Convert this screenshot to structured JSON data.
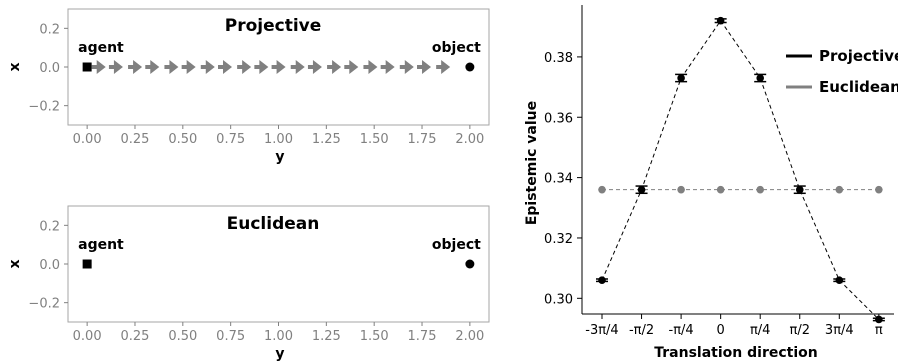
{
  "chart_data": [
    {
      "type": "scatter",
      "title": "Projective",
      "xlabel": "y",
      "ylabel": "x",
      "xlim": [
        -0.1,
        2.1
      ],
      "ylim": [
        -0.3,
        0.3
      ],
      "xticks": [
        "0.00",
        "0.25",
        "0.50",
        "0.75",
        "1.00",
        "1.25",
        "1.50",
        "1.75",
        "2.00"
      ],
      "yticks": [
        "0.2",
        "0.0",
        "−0.2"
      ],
      "agent": {
        "label": "agent",
        "x": 0.0,
        "y": 0.0
      },
      "object": {
        "label": "object",
        "x": 2.0,
        "y": 0.0
      },
      "arrows": [
        0.05,
        0.14,
        0.24,
        0.33,
        0.43,
        0.52,
        0.62,
        0.71,
        0.81,
        0.9,
        0.99,
        1.09,
        1.18,
        1.28,
        1.37,
        1.47,
        1.56,
        1.66,
        1.75,
        1.85
      ],
      "grid": false
    },
    {
      "type": "scatter",
      "title": "Euclidean",
      "xlabel": "y",
      "ylabel": "x",
      "xlim": [
        -0.1,
        2.1
      ],
      "ylim": [
        -0.3,
        0.3
      ],
      "xticks": [
        "0.00",
        "0.25",
        "0.50",
        "0.75",
        "1.00",
        "1.25",
        "1.50",
        "1.75",
        "2.00"
      ],
      "yticks": [
        "0.2",
        "0.0",
        "−0.2"
      ],
      "agent": {
        "label": "agent",
        "x": 0.0,
        "y": 0.0
      },
      "object": {
        "label": "object",
        "x": 2.0,
        "y": 0.0
      },
      "grid": false
    },
    {
      "type": "line",
      "title": "",
      "xlabel": "Translation direction",
      "ylabel": "Epistemic value",
      "categories": [
        "-3π/4",
        "-π/2",
        "-π/4",
        "0",
        "π/4",
        "π/2",
        "3π/4",
        "π"
      ],
      "ylim": [
        0.2948,
        0.3972
      ],
      "yticks": [
        0.3,
        0.32,
        0.34,
        0.36,
        0.38
      ],
      "series": [
        {
          "name": "Projective",
          "color": "#000000",
          "values": [
            0.306,
            0.336,
            0.373,
            0.392,
            0.373,
            0.336,
            0.306,
            0.293
          ],
          "errors": [
            0.0004,
            0.0012,
            0.0012,
            0.0006,
            0.0012,
            0.0012,
            0.0004,
            0.0004
          ]
        },
        {
          "name": "Euclidean",
          "color": "#808080",
          "values": [
            0.336,
            0.336,
            0.336,
            0.336,
            0.336,
            0.336,
            0.336,
            0.336
          ]
        }
      ],
      "legend": "top-right",
      "grid": false
    }
  ]
}
